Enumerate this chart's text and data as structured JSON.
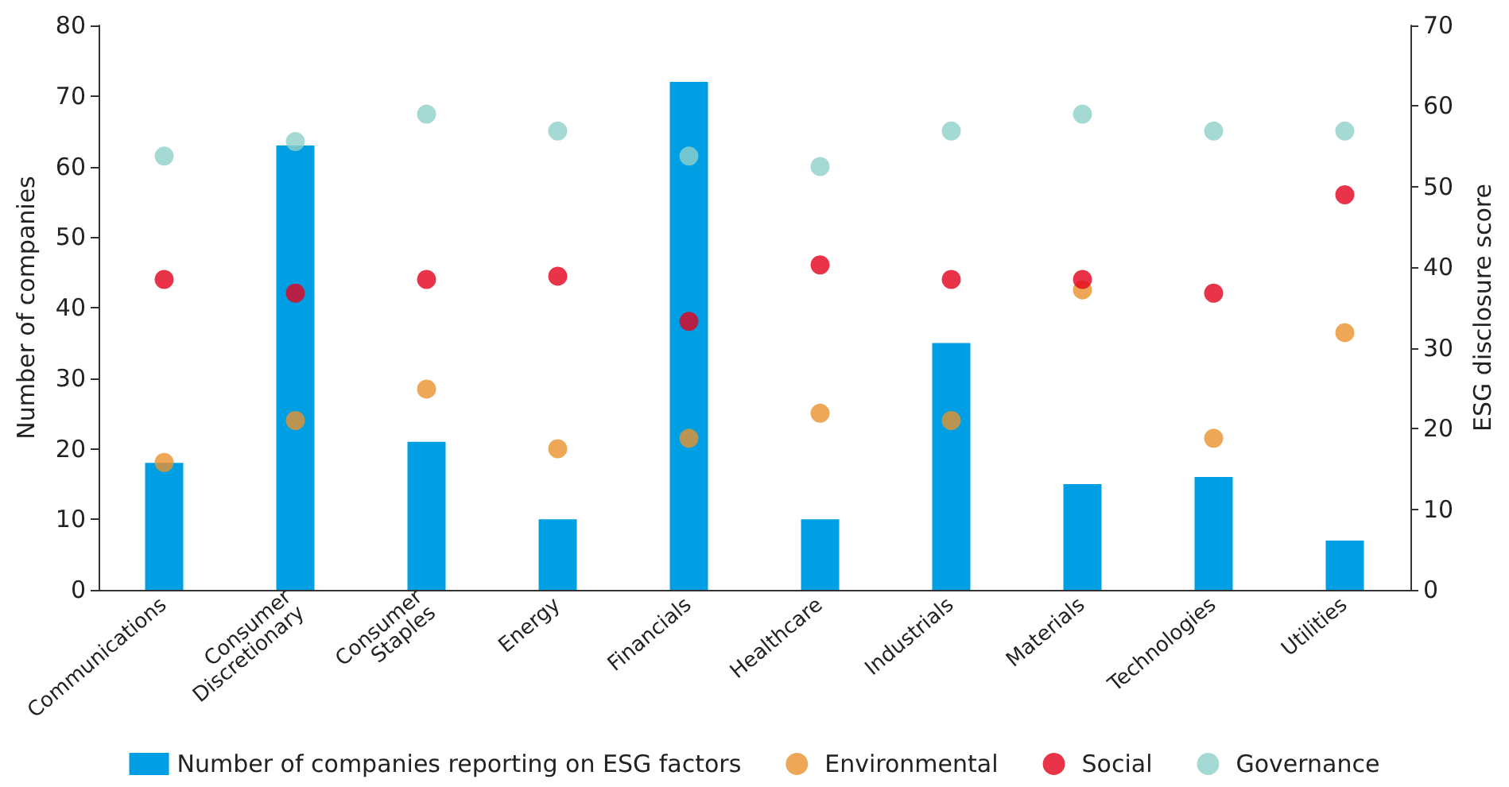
{
  "chart_data": {
    "type": "bar",
    "ylabel": "Number of companies",
    "y2label": "ESG disclosure score",
    "categories": [
      "Communications",
      "Consumer Discretionary",
      "Consumer Staples",
      "Energy",
      "Financials",
      "Healthcare",
      "Industrials",
      "Materials",
      "Technologies",
      "Utilities"
    ],
    "series": [
      {
        "name": "Number of companies reporting on ESG factors",
        "color": "#009fe3",
        "values": [
          18,
          63,
          21,
          10,
          72,
          10,
          35,
          15,
          16,
          7
        ]
      },
      {
        "name": "Environmental",
        "type": "scatter",
        "axis": "y2",
        "color": "#e8912d",
        "values": [
          15.8,
          21,
          24.9,
          17.5,
          18.8,
          21.9,
          21,
          37.2,
          18.8,
          31.9
        ]
      },
      {
        "name": "Social",
        "type": "scatter",
        "axis": "y2",
        "color": "#e3001b",
        "values": [
          38.5,
          36.8,
          38.5,
          38.9,
          33.3,
          40.3,
          38.5,
          38.5,
          36.8,
          49
        ]
      },
      {
        "name": "Governance",
        "type": "scatter",
        "axis": "y2",
        "color": "#8ecfc9",
        "values": [
          53.8,
          55.6,
          59,
          56.9,
          53.8,
          52.5,
          56.9,
          59,
          56.9,
          56.9
        ]
      }
    ],
    "ylim": [
      0,
      80
    ],
    "yticks": [
      0,
      10,
      20,
      30,
      40,
      50,
      60,
      70,
      80
    ],
    "y2lim": [
      0,
      70
    ],
    "y2ticks": [
      0,
      10,
      20,
      30,
      40,
      50,
      60,
      70
    ],
    "grid": false,
    "legend": "bottom",
    "marker": "circle"
  }
}
